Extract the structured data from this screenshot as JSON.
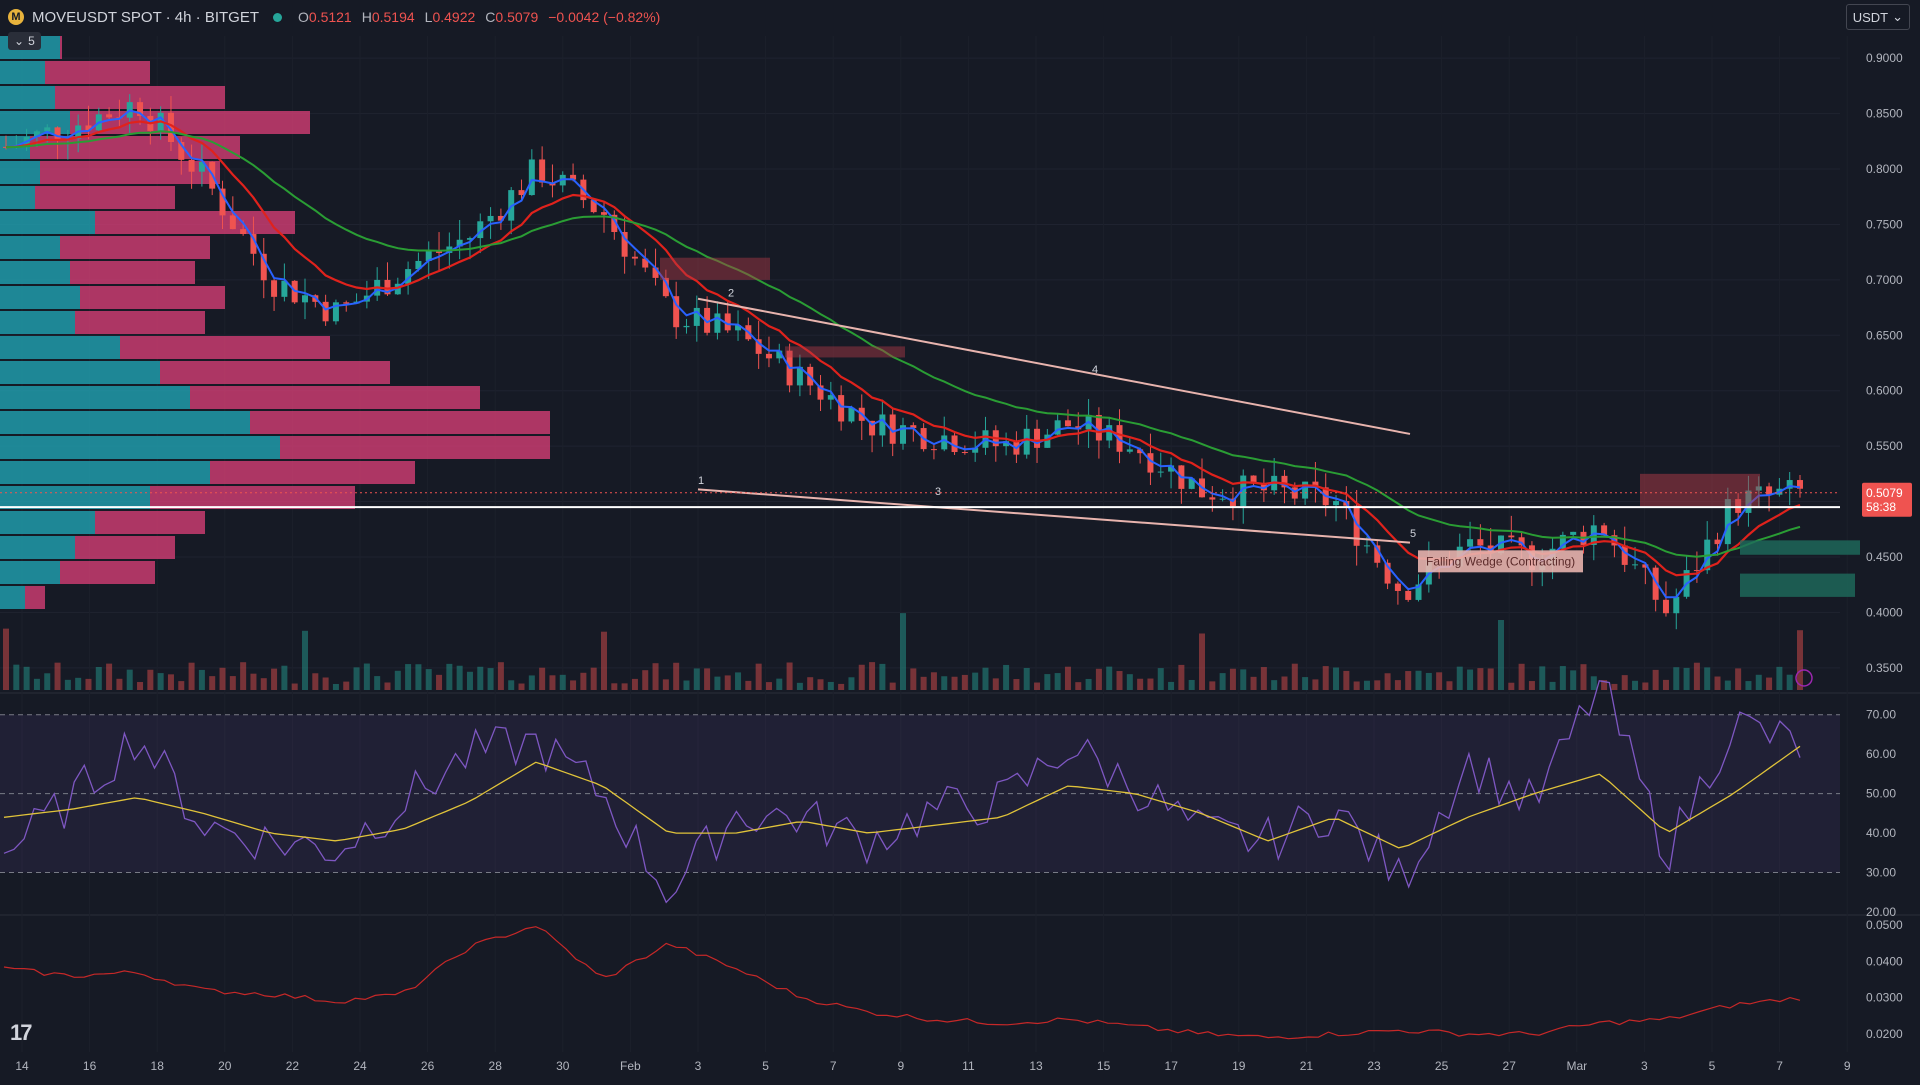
{
  "header": {
    "symbol_icon": "M",
    "title": "MOVEUSDT SPOT · 4h · BITGET",
    "open_label": "O",
    "open": "0.5121",
    "high_label": "H",
    "high": "0.5194",
    "low_label": "L",
    "low": "0.4922",
    "close_label": "C",
    "close": "0.5079",
    "change": "−0.0042 (−0.82%)"
  },
  "indicator_toggle": {
    "count": "5"
  },
  "currency": {
    "label": "USDT"
  },
  "price_axis": {
    "ticks": [
      "0.9000",
      "0.8500",
      "0.8000",
      "0.7500",
      "0.7000",
      "0.6500",
      "0.6000",
      "0.5500",
      "0.5000",
      "0.4500",
      "0.4000",
      "0.3500"
    ],
    "current_price": "0.5079",
    "countdown": "58:38"
  },
  "rsi_axis": {
    "ticks": [
      "70.00",
      "60.00",
      "50.00",
      "40.00",
      "30.00",
      "20.00"
    ]
  },
  "osc_axis": {
    "ticks": [
      "0.0500",
      "0.0400",
      "0.0300",
      "0.0200"
    ]
  },
  "time_axis": {
    "labels": [
      "14",
      "16",
      "18",
      "20",
      "22",
      "24",
      "26",
      "28",
      "30",
      "Feb",
      "3",
      "5",
      "7",
      "9",
      "11",
      "13",
      "15",
      "17",
      "19",
      "21",
      "23",
      "25",
      "27",
      "Mar",
      "3",
      "5",
      "7",
      "9"
    ]
  },
  "pattern_label": "Falling Wedge (Contracting)",
  "wedge_points": [
    "1",
    "2",
    "3",
    "4",
    "5"
  ],
  "colors": {
    "background": "#161a25",
    "up": "#26a69a",
    "down": "#ef5350",
    "ema_fast": "#2962ff",
    "ema_mid": "#e0221c",
    "ema_slow": "#2a9d34",
    "rsi": "#7e57c2",
    "rsi_ma": "#e0c33a",
    "oscillator": "#c62828"
  },
  "chart_data": {
    "type": "candlestick",
    "x": [
      "Jan 14",
      "Jan 16",
      "Jan 18",
      "Jan 20",
      "Jan 22",
      "Jan 24",
      "Jan 26",
      "Jan 28",
      "Jan 30",
      "Feb 1",
      "Feb 3",
      "Feb 5",
      "Feb 7",
      "Feb 9",
      "Feb 11",
      "Feb 13",
      "Feb 15",
      "Feb 17",
      "Feb 19",
      "Feb 21",
      "Feb 23",
      "Feb 25",
      "Feb 27",
      "Mar 1",
      "Mar 3",
      "Mar 5",
      "Mar 7",
      "Mar 8"
    ],
    "close_path": [
      0.82,
      0.84,
      0.86,
      0.79,
      0.7,
      0.67,
      0.71,
      0.74,
      0.8,
      0.76,
      0.67,
      0.65,
      0.61,
      0.57,
      0.56,
      0.55,
      0.57,
      0.55,
      0.51,
      0.51,
      0.5,
      0.42,
      0.46,
      0.45,
      0.48,
      0.4,
      0.5,
      0.5079
    ],
    "ylim": [
      0.33,
      0.92
    ],
    "rsi": {
      "values": [
        35,
        48,
        65,
        42,
        38,
        36,
        48,
        60,
        63,
        50,
        25,
        45,
        44,
        38,
        46,
        48,
        62,
        52,
        40,
        38,
        46,
        28,
        58,
        47,
        78,
        35,
        68,
        62
      ],
      "ma": [
        44,
        46,
        49,
        45,
        40,
        38,
        41,
        48,
        58,
        52,
        40,
        40,
        43,
        40,
        42,
        44,
        52,
        50,
        45,
        38,
        44,
        36,
        44,
        50,
        55,
        40,
        50,
        62
      ],
      "ylim": [
        20,
        75
      ],
      "bands": [
        30,
        50,
        70
      ]
    },
    "oscillator": {
      "values": [
        0.038,
        0.036,
        0.037,
        0.032,
        0.031,
        0.029,
        0.031,
        0.044,
        0.05,
        0.035,
        0.045,
        0.038,
        0.03,
        0.026,
        0.024,
        0.023,
        0.024,
        0.022,
        0.02,
        0.019,
        0.02,
        0.021,
        0.02,
        0.02,
        0.023,
        0.024,
        0.028,
        0.03
      ],
      "ylim": [
        0.015,
        0.052
      ]
    }
  }
}
